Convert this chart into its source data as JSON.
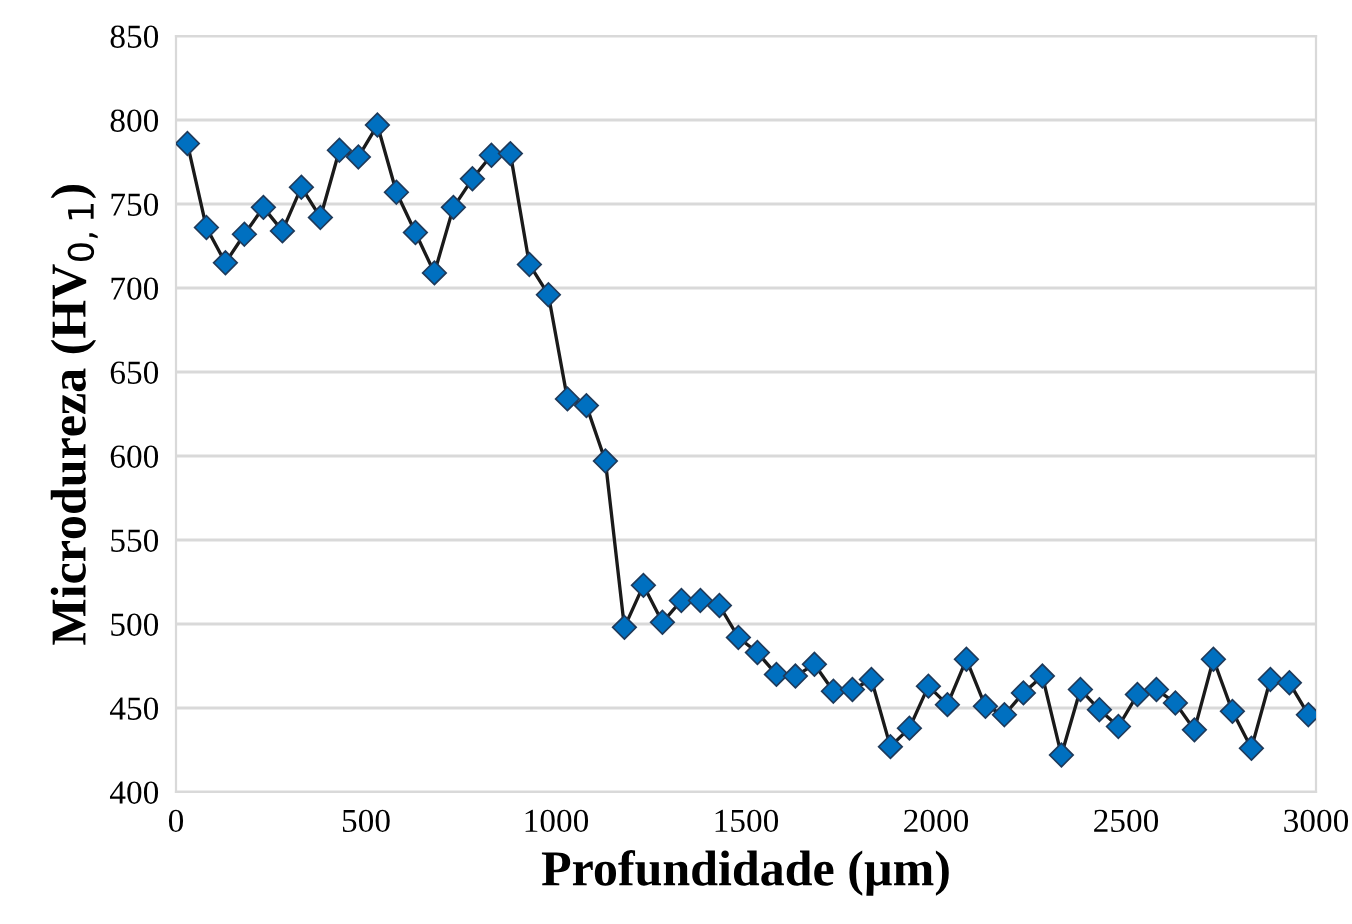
{
  "chart_data": {
    "type": "line",
    "xlabel": "Profundidade (µm)",
    "ylabel": "Microdureza (HV$_{0,1}$)",
    "x": [
      30,
      80,
      130,
      180,
      230,
      280,
      330,
      380,
      430,
      480,
      530,
      580,
      630,
      680,
      730,
      780,
      830,
      880,
      930,
      980,
      1030,
      1080,
      1130,
      1180,
      1230,
      1280,
      1330,
      1380,
      1430,
      1480,
      1530,
      1580,
      1630,
      1680,
      1730,
      1780,
      1830,
      1880,
      1930,
      1980,
      2030,
      2080,
      2130,
      2180,
      2230,
      2280,
      2330,
      2380,
      2430,
      2480,
      2530,
      2580,
      2630,
      2680,
      2730,
      2780,
      2830,
      2880,
      2930,
      2980
    ],
    "series": [
      {
        "color": "#0070c0",
        "values": [
          786,
          736,
          715,
          732,
          748,
          734,
          760,
          742,
          782,
          778,
          797,
          757,
          733,
          709,
          748,
          765,
          779,
          780,
          714,
          696,
          634,
          630,
          597,
          498,
          523,
          501,
          514,
          514,
          511,
          492,
          483,
          470,
          469,
          476,
          460,
          461,
          467,
          427,
          438,
          463,
          452,
          479,
          451,
          446,
          459,
          469,
          422,
          461,
          449,
          439,
          458,
          461,
          453,
          437,
          479,
          448,
          426,
          467,
          465,
          446
        ]
      }
    ],
    "xlim": [
      0,
      3000
    ],
    "xticks": [
      0,
      500,
      1000,
      1500,
      2000,
      2500,
      3000
    ],
    "ylim": [
      400,
      850
    ],
    "yticks": [
      400,
      450,
      500,
      550,
      600,
      650,
      700,
      750,
      800,
      850
    ],
    "grid": "y",
    "marker": "diamond",
    "line_style": "solid"
  }
}
